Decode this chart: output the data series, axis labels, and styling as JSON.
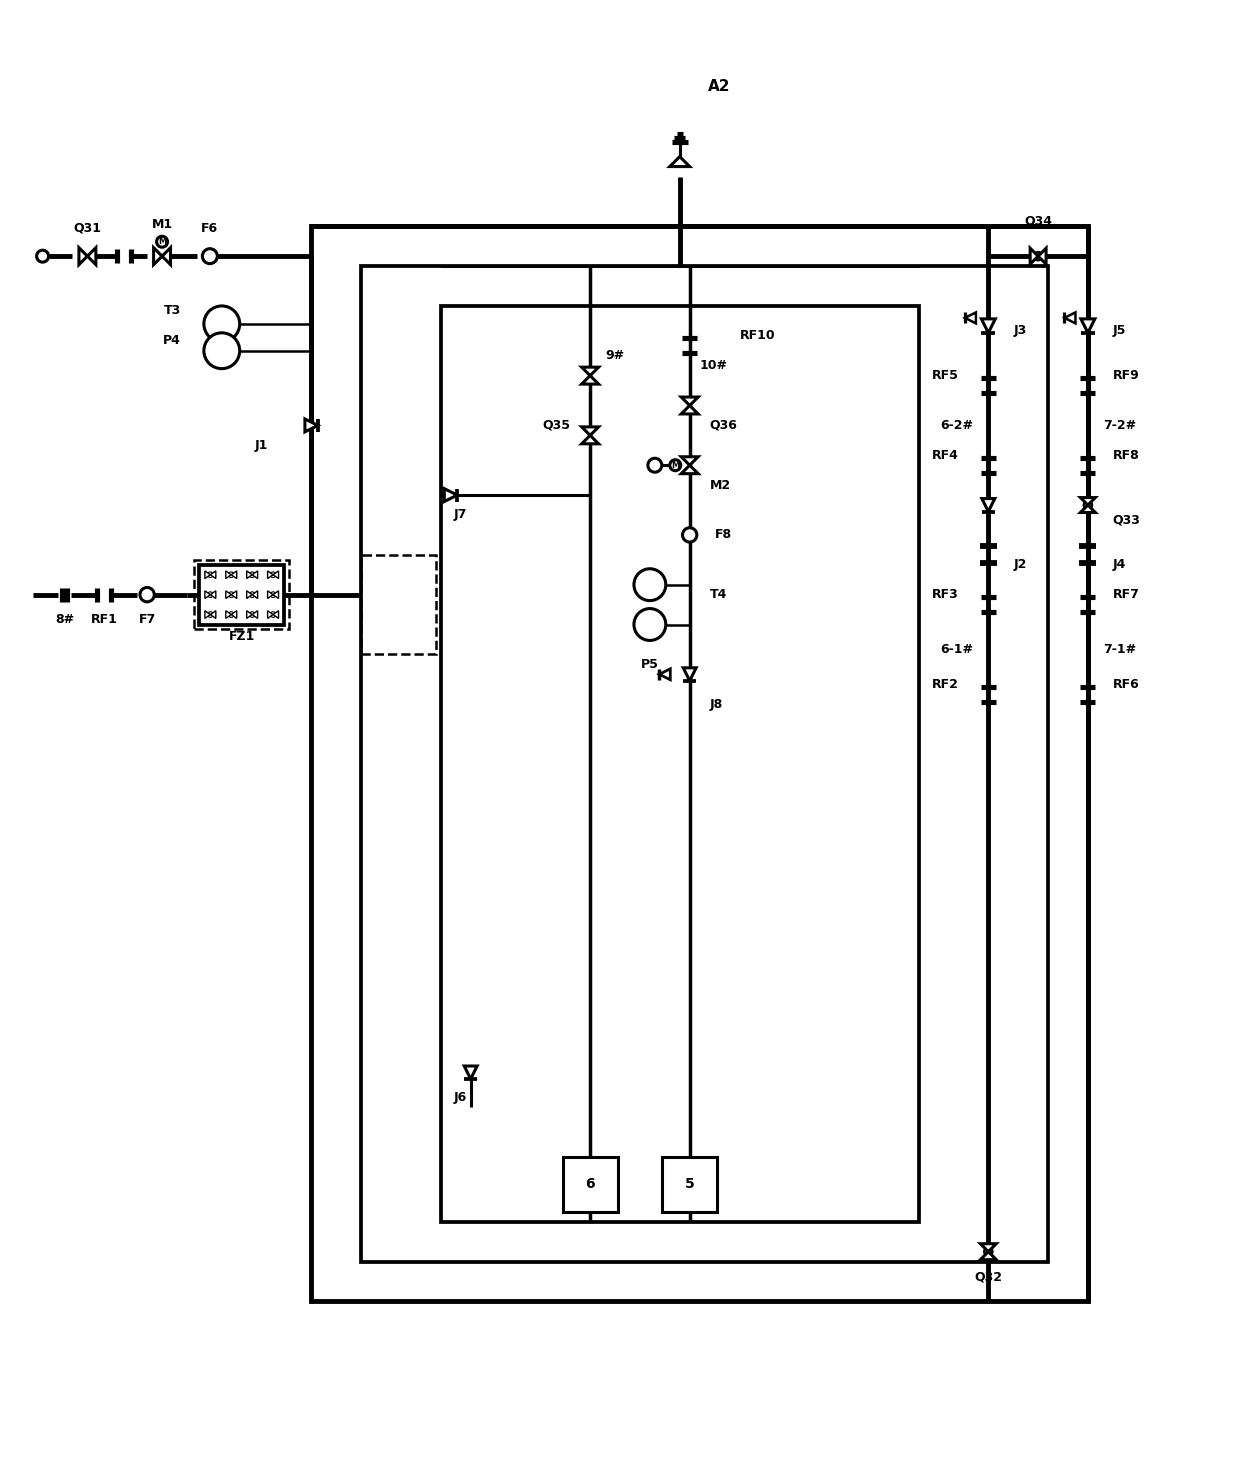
{
  "bg_color": "#ffffff",
  "lw_thick": 3.5,
  "lw_med": 2.2,
  "lw_thin": 1.5,
  "figsize": [
    12.4,
    14.74
  ],
  "dpi": 100,
  "xlim": [
    0,
    124
  ],
  "ylim": [
    0,
    147.4
  ]
}
